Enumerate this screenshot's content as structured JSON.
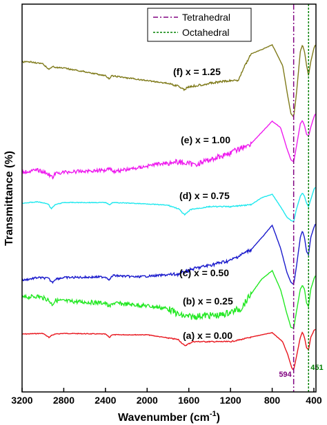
{
  "chart_data": {
    "type": "line",
    "xlabel": "Wavenumber (cm",
    "xlabel_sup": "-1",
    "xlabel_end": ")",
    "ylabel": "Transmittance (%)",
    "xlim": [
      3200,
      380
    ],
    "x_reversed": true,
    "x_ticks": [
      3200,
      2800,
      2400,
      2000,
      1600,
      1200,
      800,
      400
    ],
    "y_ticks_shown": false,
    "grid": false,
    "legend": {
      "placement": "top-right",
      "entries": [
        {
          "label": "Tetrahedral",
          "style": "dash-dot",
          "color": "#800080"
        },
        {
          "label": "Octahedral",
          "style": "dotted",
          "color": "#008000"
        }
      ]
    },
    "reference_lines": [
      {
        "x": 594,
        "label": "594",
        "color": "#800080",
        "style": "dash-dot"
      },
      {
        "x": 451,
        "label": "451",
        "color": "#008000",
        "style": "dotted"
      }
    ],
    "series": [
      {
        "name": "(a) x = 0.00",
        "color": "#e8141c",
        "noise": 0.5,
        "points": [
          [
            3200,
            485
          ],
          [
            3000,
            484
          ],
          [
            2940,
            490
          ],
          [
            2920,
            487
          ],
          [
            2880,
            485
          ],
          [
            2800,
            484
          ],
          [
            2400,
            485
          ],
          [
            2360,
            490
          ],
          [
            2340,
            486
          ],
          [
            2000,
            486
          ],
          [
            1700,
            493
          ],
          [
            1640,
            502
          ],
          [
            1560,
            496
          ],
          [
            1200,
            496
          ],
          [
            1100,
            493
          ],
          [
            900,
            486
          ],
          [
            800,
            483
          ],
          [
            700,
            496
          ],
          [
            650,
            515
          ],
          [
            610,
            535
          ],
          [
            594,
            537
          ],
          [
            570,
            520
          ],
          [
            530,
            490
          ],
          [
            510,
            482
          ],
          [
            490,
            490
          ],
          [
            470,
            505
          ],
          [
            451,
            508
          ],
          [
            430,
            490
          ],
          [
            400,
            480
          ],
          [
            385,
            478
          ]
        ]
      },
      {
        "name": "(b) x = 0.25",
        "color": "#22e822",
        "noise": 3,
        "points": [
          [
            3200,
            432
          ],
          [
            3050,
            430
          ],
          [
            2950,
            435
          ],
          [
            2910,
            442
          ],
          [
            2880,
            436
          ],
          [
            2800,
            437
          ],
          [
            2400,
            440
          ],
          [
            2360,
            446
          ],
          [
            2330,
            440
          ],
          [
            2000,
            444
          ],
          [
            1800,
            448
          ],
          [
            1680,
            458
          ],
          [
            1600,
            460
          ],
          [
            1450,
            458
          ],
          [
            1300,
            458
          ],
          [
            1100,
            448
          ],
          [
            900,
            405
          ],
          [
            800,
            393
          ],
          [
            720,
            420
          ],
          [
            660,
            455
          ],
          [
            620,
            475
          ],
          [
            594,
            477
          ],
          [
            570,
            455
          ],
          [
            530,
            420
          ],
          [
            510,
            414
          ],
          [
            490,
            420
          ],
          [
            470,
            440
          ],
          [
            451,
            445
          ],
          [
            430,
            420
          ],
          [
            400,
            405
          ],
          [
            385,
            400
          ]
        ]
      },
      {
        "name": "(c) x = 0.50",
        "color": "#1a1acc",
        "noise": 1.5,
        "points": [
          [
            3200,
            407
          ],
          [
            3050,
            403
          ],
          [
            2950,
            404
          ],
          [
            2910,
            410
          ],
          [
            2880,
            405
          ],
          [
            2800,
            403
          ],
          [
            2400,
            402
          ],
          [
            2360,
            406
          ],
          [
            2330,
            400
          ],
          [
            2100,
            402
          ],
          [
            1900,
            400
          ],
          [
            1700,
            398
          ],
          [
            1550,
            390
          ],
          [
            1400,
            385
          ],
          [
            1200,
            378
          ],
          [
            1100,
            370
          ],
          [
            1000,
            362
          ],
          [
            900,
            345
          ],
          [
            800,
            327
          ],
          [
            720,
            360
          ],
          [
            660,
            395
          ],
          [
            620,
            410
          ],
          [
            594,
            413
          ],
          [
            570,
            390
          ],
          [
            530,
            345
          ],
          [
            510,
            335
          ],
          [
            490,
            345
          ],
          [
            470,
            365
          ],
          [
            451,
            370
          ],
          [
            430,
            345
          ],
          [
            400,
            330
          ],
          [
            385,
            325
          ]
        ]
      },
      {
        "name": "(d) x = 0.75",
        "color": "#1ee8ee",
        "noise": 0.5,
        "points": [
          [
            3200,
            295
          ],
          [
            3050,
            293
          ],
          [
            2950,
            296
          ],
          [
            2920,
            303
          ],
          [
            2880,
            297
          ],
          [
            2800,
            294
          ],
          [
            2400,
            294
          ],
          [
            2360,
            297
          ],
          [
            2330,
            294
          ],
          [
            2000,
            296
          ],
          [
            1800,
            298
          ],
          [
            1700,
            303
          ],
          [
            1640,
            312
          ],
          [
            1580,
            304
          ],
          [
            1400,
            300
          ],
          [
            1200,
            300
          ],
          [
            1000,
            297
          ],
          [
            900,
            287
          ],
          [
            800,
            282
          ],
          [
            720,
            300
          ],
          [
            660,
            315
          ],
          [
            620,
            320
          ],
          [
            594,
            322
          ],
          [
            570,
            305
          ],
          [
            530,
            285
          ],
          [
            510,
            280
          ],
          [
            490,
            285
          ],
          [
            470,
            295
          ],
          [
            451,
            300
          ],
          [
            430,
            290
          ],
          [
            400,
            275
          ],
          [
            385,
            272
          ]
        ]
      },
      {
        "name": "(e) x = 1.00",
        "color": "#ee1aee",
        "noise": 2.5,
        "points": [
          [
            3200,
            250
          ],
          [
            3050,
            247
          ],
          [
            2950,
            252
          ],
          [
            2910,
            258
          ],
          [
            2880,
            252
          ],
          [
            2800,
            250
          ],
          [
            2400,
            247
          ],
          [
            2360,
            243
          ],
          [
            2330,
            249
          ],
          [
            2100,
            244
          ],
          [
            1900,
            238
          ],
          [
            1700,
            235
          ],
          [
            1550,
            239
          ],
          [
            1400,
            232
          ],
          [
            1200,
            222
          ],
          [
            1000,
            208
          ],
          [
            900,
            192
          ],
          [
            800,
            176
          ],
          [
            720,
            185
          ],
          [
            660,
            215
          ],
          [
            620,
            232
          ],
          [
            594,
            235
          ],
          [
            570,
            215
          ],
          [
            530,
            180
          ],
          [
            510,
            175
          ],
          [
            490,
            182
          ],
          [
            470,
            195
          ],
          [
            451,
            198
          ],
          [
            430,
            185
          ],
          [
            400,
            170
          ],
          [
            385,
            165
          ]
        ]
      },
      {
        "name": "(f) x = 1.25",
        "color": "#7f7a1a",
        "noise": 1,
        "points": [
          [
            3200,
            90
          ],
          [
            3100,
            90
          ],
          [
            3000,
            93
          ],
          [
            2940,
            101
          ],
          [
            2910,
            96
          ],
          [
            2880,
            98
          ],
          [
            2800,
            99
          ],
          [
            2600,
            104
          ],
          [
            2400,
            110
          ],
          [
            2360,
            115
          ],
          [
            2340,
            110
          ],
          [
            2200,
            113
          ],
          [
            2000,
            117
          ],
          [
            1800,
            121
          ],
          [
            1700,
            125
          ],
          [
            1650,
            130
          ],
          [
            1600,
            126
          ],
          [
            1400,
            121
          ],
          [
            1250,
            118
          ],
          [
            1120,
            116
          ],
          [
            1080,
            100
          ],
          [
            1000,
            78
          ],
          [
            900,
            72
          ],
          [
            800,
            65
          ],
          [
            700,
            95
          ],
          [
            650,
            140
          ],
          [
            620,
            165
          ],
          [
            594,
            170
          ],
          [
            570,
            140
          ],
          [
            530,
            75
          ],
          [
            510,
            65
          ],
          [
            490,
            75
          ],
          [
            470,
            95
          ],
          [
            451,
            110
          ],
          [
            430,
            90
          ],
          [
            400,
            70
          ],
          [
            385,
            65
          ]
        ]
      }
    ],
    "series_label_text": [
      "(a) x = 0.00",
      "(b) x = 0.25",
      "(c) x = 0.50",
      "(d) x = 0.75",
      "(e) x = 1.00",
      "(f) x = 1.25"
    ]
  }
}
